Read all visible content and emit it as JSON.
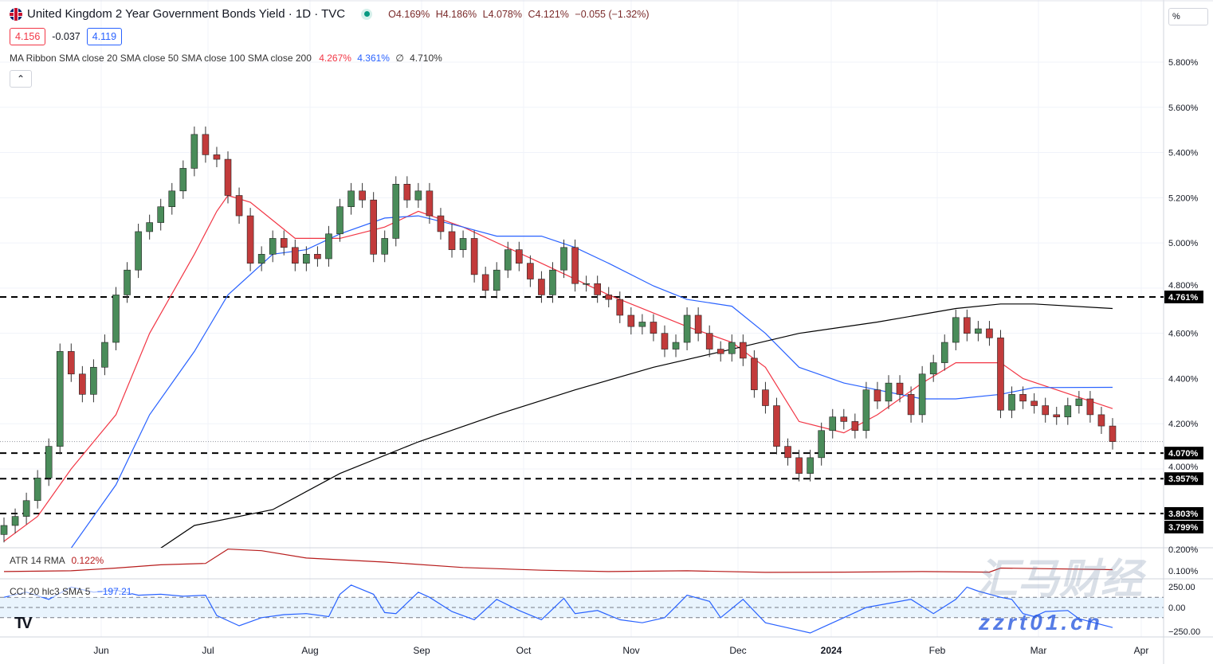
{
  "header": {
    "title": "United Kingdom 2 Year Government Bonds Yield · 1D · TVC",
    "ohlc": {
      "open": "O4.169%",
      "high": "H4.186%",
      "low": "L4.078%",
      "close": "C4.121%",
      "change": "−0.055 (−1.32%)"
    },
    "bid": "4.156",
    "spread": "-0.037",
    "ask": "4.119",
    "ma_label": "MA Ribbon SMA close 20 SMA close 50 SMA close 100 SMA close 200",
    "ma_values": {
      "sma20": "4.267%",
      "sma50": "4.361%",
      "sma100": "∅",
      "sma200": "4.710%"
    },
    "collapse_icon": "chevron-up-icon",
    "scale_unit": "%"
  },
  "colors": {
    "up": "#089981",
    "down": "#f23645",
    "up_body": "#4a8c5a",
    "down_body": "#c23b3b",
    "sma20": "#f23645",
    "sma50": "#2962ff",
    "sma200": "#000000",
    "atr": "#b71c1c",
    "cci": "#2962ff"
  },
  "chart_data": [
    {
      "type": "candlestick",
      "title": "United Kingdom 2 Year Government Bonds Yield",
      "ylim": [
        3.75,
        5.85
      ],
      "yticks": [
        "5.800%",
        "5.600%",
        "5.400%",
        "5.200%",
        "5.000%",
        "4.800%",
        "4.600%",
        "4.400%",
        "4.200%",
        "4.000%"
      ],
      "ytick_values": [
        5.8,
        5.6,
        5.4,
        5.2,
        5.0,
        4.8,
        4.6,
        4.4,
        4.2,
        4.0
      ],
      "xticks": [
        "Jun",
        "Jul",
        "Aug",
        "Sep",
        "Oct",
        "Nov",
        "Dec",
        "2024",
        "Feb",
        "Mar",
        "Apr"
      ],
      "close": [
        3.75,
        3.79,
        3.86,
        3.96,
        4.1,
        4.52,
        4.42,
        4.33,
        4.45,
        4.56,
        4.77,
        4.88,
        5.05,
        5.09,
        5.16,
        5.23,
        5.33,
        5.48,
        5.39,
        5.37,
        5.21,
        5.12,
        4.91,
        4.95,
        5.02,
        4.98,
        4.91,
        4.95,
        4.93,
        5.04,
        5.16,
        5.23,
        5.19,
        4.95,
        5.02,
        5.26,
        5.19,
        5.23,
        5.12,
        5.05,
        4.97,
        5.02,
        4.86,
        4.79,
        4.88,
        4.97,
        4.91,
        4.84,
        4.77,
        4.88,
        4.98,
        4.82,
        4.82,
        4.77,
        4.75,
        4.68,
        4.63,
        4.65,
        4.6,
        4.53,
        4.56,
        4.68,
        4.6,
        4.53,
        4.51,
        4.56,
        4.49,
        4.35,
        4.28,
        4.1,
        4.05,
        3.98,
        4.05,
        4.17,
        4.23,
        4.21,
        4.17,
        4.35,
        4.3,
        4.38,
        4.33,
        4.24,
        4.42,
        4.47,
        4.56,
        4.67,
        4.6,
        4.62,
        4.58,
        4.26,
        4.33,
        4.3,
        4.28,
        4.24,
        4.23,
        4.28,
        4.31,
        4.24,
        4.19,
        4.121
      ],
      "series": [
        {
          "name": "SMA close 20",
          "points": [
            [
              0,
              3.68
            ],
            [
              3,
              3.79
            ],
            [
              6,
              4.0
            ],
            [
              10,
              4.24
            ],
            [
              13,
              4.6
            ],
            [
              17,
              4.95
            ],
            [
              19,
              5.14
            ],
            [
              20,
              5.21
            ],
            [
              22,
              5.18
            ],
            [
              26,
              5.02
            ],
            [
              30,
              5.02
            ],
            [
              34,
              5.07
            ],
            [
              37,
              5.14
            ],
            [
              41,
              5.07
            ],
            [
              48,
              4.91
            ],
            [
              54,
              4.77
            ],
            [
              61,
              4.63
            ],
            [
              65,
              4.56
            ],
            [
              68,
              4.45
            ],
            [
              71,
              4.21
            ],
            [
              75,
              4.16
            ],
            [
              78,
              4.24
            ],
            [
              82,
              4.38
            ],
            [
              85,
              4.47
            ],
            [
              89,
              4.47
            ],
            [
              91,
              4.4
            ],
            [
              99,
              4.267
            ]
          ]
        },
        {
          "name": "SMA close 50",
          "points": [
            [
              6,
              3.65
            ],
            [
              10,
              3.93
            ],
            [
              13,
              4.24
            ],
            [
              17,
              4.52
            ],
            [
              20,
              4.77
            ],
            [
              24,
              4.95
            ],
            [
              27,
              4.97
            ],
            [
              30,
              5.04
            ],
            [
              34,
              5.11
            ],
            [
              37,
              5.12
            ],
            [
              41,
              5.07
            ],
            [
              44,
              5.03
            ],
            [
              48,
              5.03
            ],
            [
              51,
              4.98
            ],
            [
              54,
              4.91
            ],
            [
              58,
              4.81
            ],
            [
              61,
              4.75
            ],
            [
              65,
              4.72
            ],
            [
              68,
              4.6
            ],
            [
              71,
              4.45
            ],
            [
              75,
              4.38
            ],
            [
              78,
              4.35
            ],
            [
              82,
              4.31
            ],
            [
              85,
              4.31
            ],
            [
              89,
              4.33
            ],
            [
              92,
              4.36
            ],
            [
              99,
              4.361
            ]
          ]
        },
        {
          "name": "SMA close 200",
          "points": [
            [
              14,
              3.65
            ],
            [
              17,
              3.75
            ],
            [
              24,
              3.82
            ],
            [
              30,
              3.98
            ],
            [
              37,
              4.12
            ],
            [
              44,
              4.24
            ],
            [
              51,
              4.35
            ],
            [
              58,
              4.45
            ],
            [
              65,
              4.53
            ],
            [
              71,
              4.6
            ],
            [
              78,
              4.65
            ],
            [
              85,
              4.71
            ],
            [
              89,
              4.73
            ],
            [
              92,
              4.73
            ],
            [
              99,
              4.71
            ]
          ]
        }
      ],
      "hlines": [
        {
          "value": 4.761,
          "label": "4.761%"
        },
        {
          "value": 4.07,
          "label": "4.070%"
        },
        {
          "value": 3.957,
          "label": "3.957%"
        },
        {
          "value": 3.803,
          "label": "3.803%"
        }
      ],
      "extra_labels": [
        "3.799%"
      ],
      "last_price": 4.121
    },
    {
      "type": "line",
      "title": "ATR 14 RMA",
      "value_label": "0.122%",
      "yticks": [
        "0.200%",
        "0.100%"
      ],
      "ytick_values": [
        0.2,
        0.1
      ],
      "points": [
        [
          0,
          0.115
        ],
        [
          6,
          0.118
        ],
        [
          10,
          0.128
        ],
        [
          14,
          0.14
        ],
        [
          18,
          0.145
        ],
        [
          20,
          0.198
        ],
        [
          23,
          0.192
        ],
        [
          27,
          0.165
        ],
        [
          34,
          0.15
        ],
        [
          41,
          0.13
        ],
        [
          48,
          0.12
        ],
        [
          54,
          0.115
        ],
        [
          61,
          0.118
        ],
        [
          68,
          0.112
        ],
        [
          75,
          0.113
        ],
        [
          82,
          0.115
        ],
        [
          88,
          0.113
        ],
        [
          89,
          0.128
        ],
        [
          99,
          0.122
        ]
      ]
    },
    {
      "type": "line",
      "title": "CCI 20 hlc3 SMA 5",
      "value_label": "−197.21",
      "yticks": [
        "250.00",
        "0.00",
        "−250.00"
      ],
      "ytick_values": [
        250,
        0,
        -250
      ],
      "band": [
        -100,
        100
      ],
      "points": [
        [
          0,
          100
        ],
        [
          2,
          150
        ],
        [
          4,
          80
        ],
        [
          6,
          200
        ],
        [
          8,
          150
        ],
        [
          10,
          170
        ],
        [
          12,
          120
        ],
        [
          14,
          130
        ],
        [
          16,
          110
        ],
        [
          18,
          120
        ],
        [
          19,
          -80
        ],
        [
          21,
          -180
        ],
        [
          23,
          -100
        ],
        [
          25,
          -70
        ],
        [
          27,
          -60
        ],
        [
          29,
          -90
        ],
        [
          30,
          130
        ],
        [
          31,
          220
        ],
        [
          33,
          130
        ],
        [
          34,
          -50
        ],
        [
          35,
          -60
        ],
        [
          37,
          150
        ],
        [
          38,
          100
        ],
        [
          40,
          -40
        ],
        [
          42,
          -120
        ],
        [
          44,
          80
        ],
        [
          46,
          -30
        ],
        [
          48,
          -120
        ],
        [
          50,
          90
        ],
        [
          51,
          -60
        ],
        [
          53,
          -30
        ],
        [
          55,
          -120
        ],
        [
          57,
          -150
        ],
        [
          59,
          -100
        ],
        [
          61,
          120
        ],
        [
          63,
          60
        ],
        [
          64,
          -100
        ],
        [
          66,
          80
        ],
        [
          68,
          -150
        ],
        [
          70,
          -200
        ],
        [
          72,
          -250
        ],
        [
          73,
          -200
        ],
        [
          75,
          -100
        ],
        [
          77,
          0
        ],
        [
          79,
          40
        ],
        [
          81,
          80
        ],
        [
          83,
          -60
        ],
        [
          85,
          80
        ],
        [
          86,
          200
        ],
        [
          87,
          160
        ],
        [
          89,
          100
        ],
        [
          90,
          80
        ],
        [
          91,
          -60
        ],
        [
          92,
          -90
        ],
        [
          93,
          -40
        ],
        [
          95,
          -30
        ],
        [
          96,
          -110
        ],
        [
          99,
          -197.21
        ]
      ]
    }
  ],
  "watermark": {
    "text1": "汇马财经",
    "text2": "zzrt01.cn"
  },
  "logo": "TV"
}
